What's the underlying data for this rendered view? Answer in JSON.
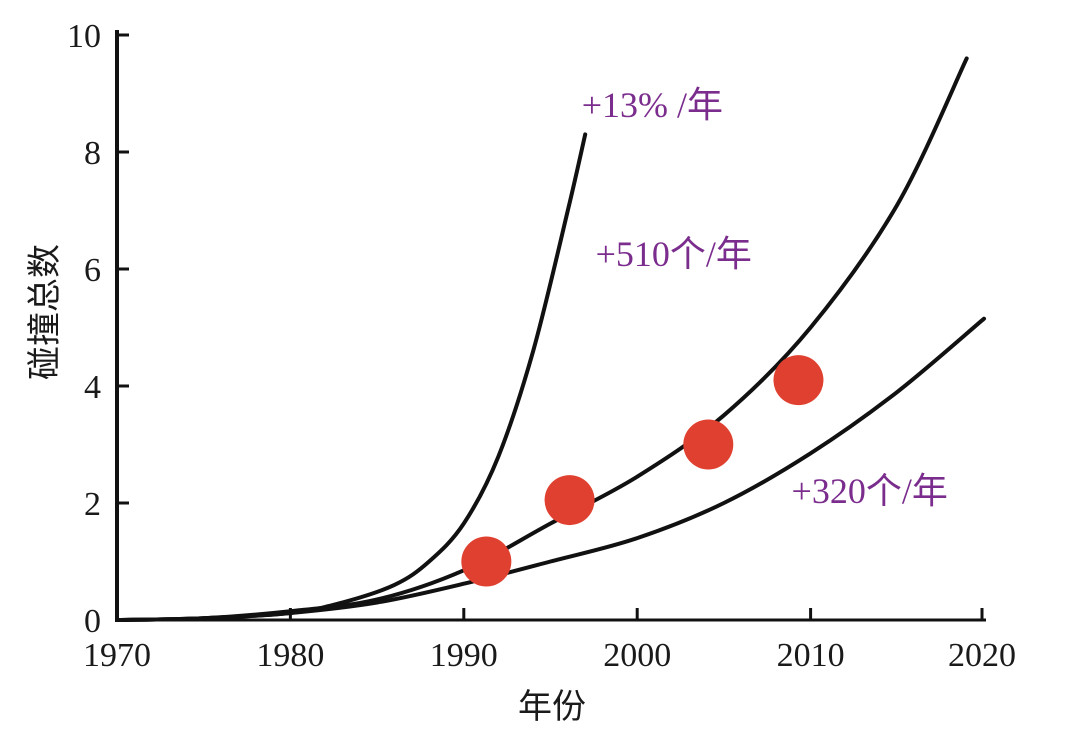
{
  "chart_data": {
    "type": "line",
    "title": "",
    "xlabel": "年份",
    "ylabel": "碰撞总数",
    "xlim": [
      1970,
      2020
    ],
    "ylim": [
      0,
      10
    ],
    "x_ticks": [
      1970,
      1980,
      1990,
      2000,
      2010,
      2020
    ],
    "y_ticks": [
      0,
      2,
      4,
      6,
      8,
      10
    ],
    "grid": false,
    "legend": "none",
    "colors": {
      "curve": "#111111",
      "label": "#7b2d8e",
      "point": "#e0402f",
      "axis": "#111111"
    },
    "series": [
      {
        "name": "+13% /年",
        "x": [
          1970,
          1975,
          1980,
          1983,
          1986,
          1988,
          1990,
          1992,
          1994,
          1996,
          1997
        ],
        "y": [
          0,
          0.03,
          0.12,
          0.3,
          0.6,
          1.0,
          1.65,
          2.8,
          4.6,
          7.0,
          8.3
        ]
      },
      {
        "name": "+510个/年",
        "x": [
          1970,
          1975,
          1980,
          1985,
          1990,
          1995,
          2000,
          2005,
          2010,
          2015,
          2019
        ],
        "y": [
          0,
          0.03,
          0.15,
          0.35,
          0.85,
          1.65,
          2.45,
          3.5,
          5.0,
          7.1,
          9.6
        ]
      },
      {
        "name": "+320个/年",
        "x": [
          1970,
          1975,
          1980,
          1985,
          1990,
          1995,
          2000,
          2005,
          2010,
          2015,
          2020
        ],
        "y": [
          0,
          0.03,
          0.12,
          0.3,
          0.62,
          1.0,
          1.4,
          2.0,
          2.85,
          3.9,
          5.15
        ]
      }
    ],
    "points": [
      {
        "x": 1991.3,
        "y": 1.0
      },
      {
        "x": 1996.1,
        "y": 2.05
      },
      {
        "x": 2004.1,
        "y": 3.0
      },
      {
        "x": 2009.3,
        "y": 4.1
      }
    ],
    "annotations": [
      {
        "text": "+13% /年",
        "x": 1996.8,
        "y": 8.6
      },
      {
        "text": "+510个/年",
        "x": 1997.6,
        "y": 6.05
      },
      {
        "text": "+320个/年",
        "x": 2008.9,
        "y": 2.0
      }
    ]
  }
}
